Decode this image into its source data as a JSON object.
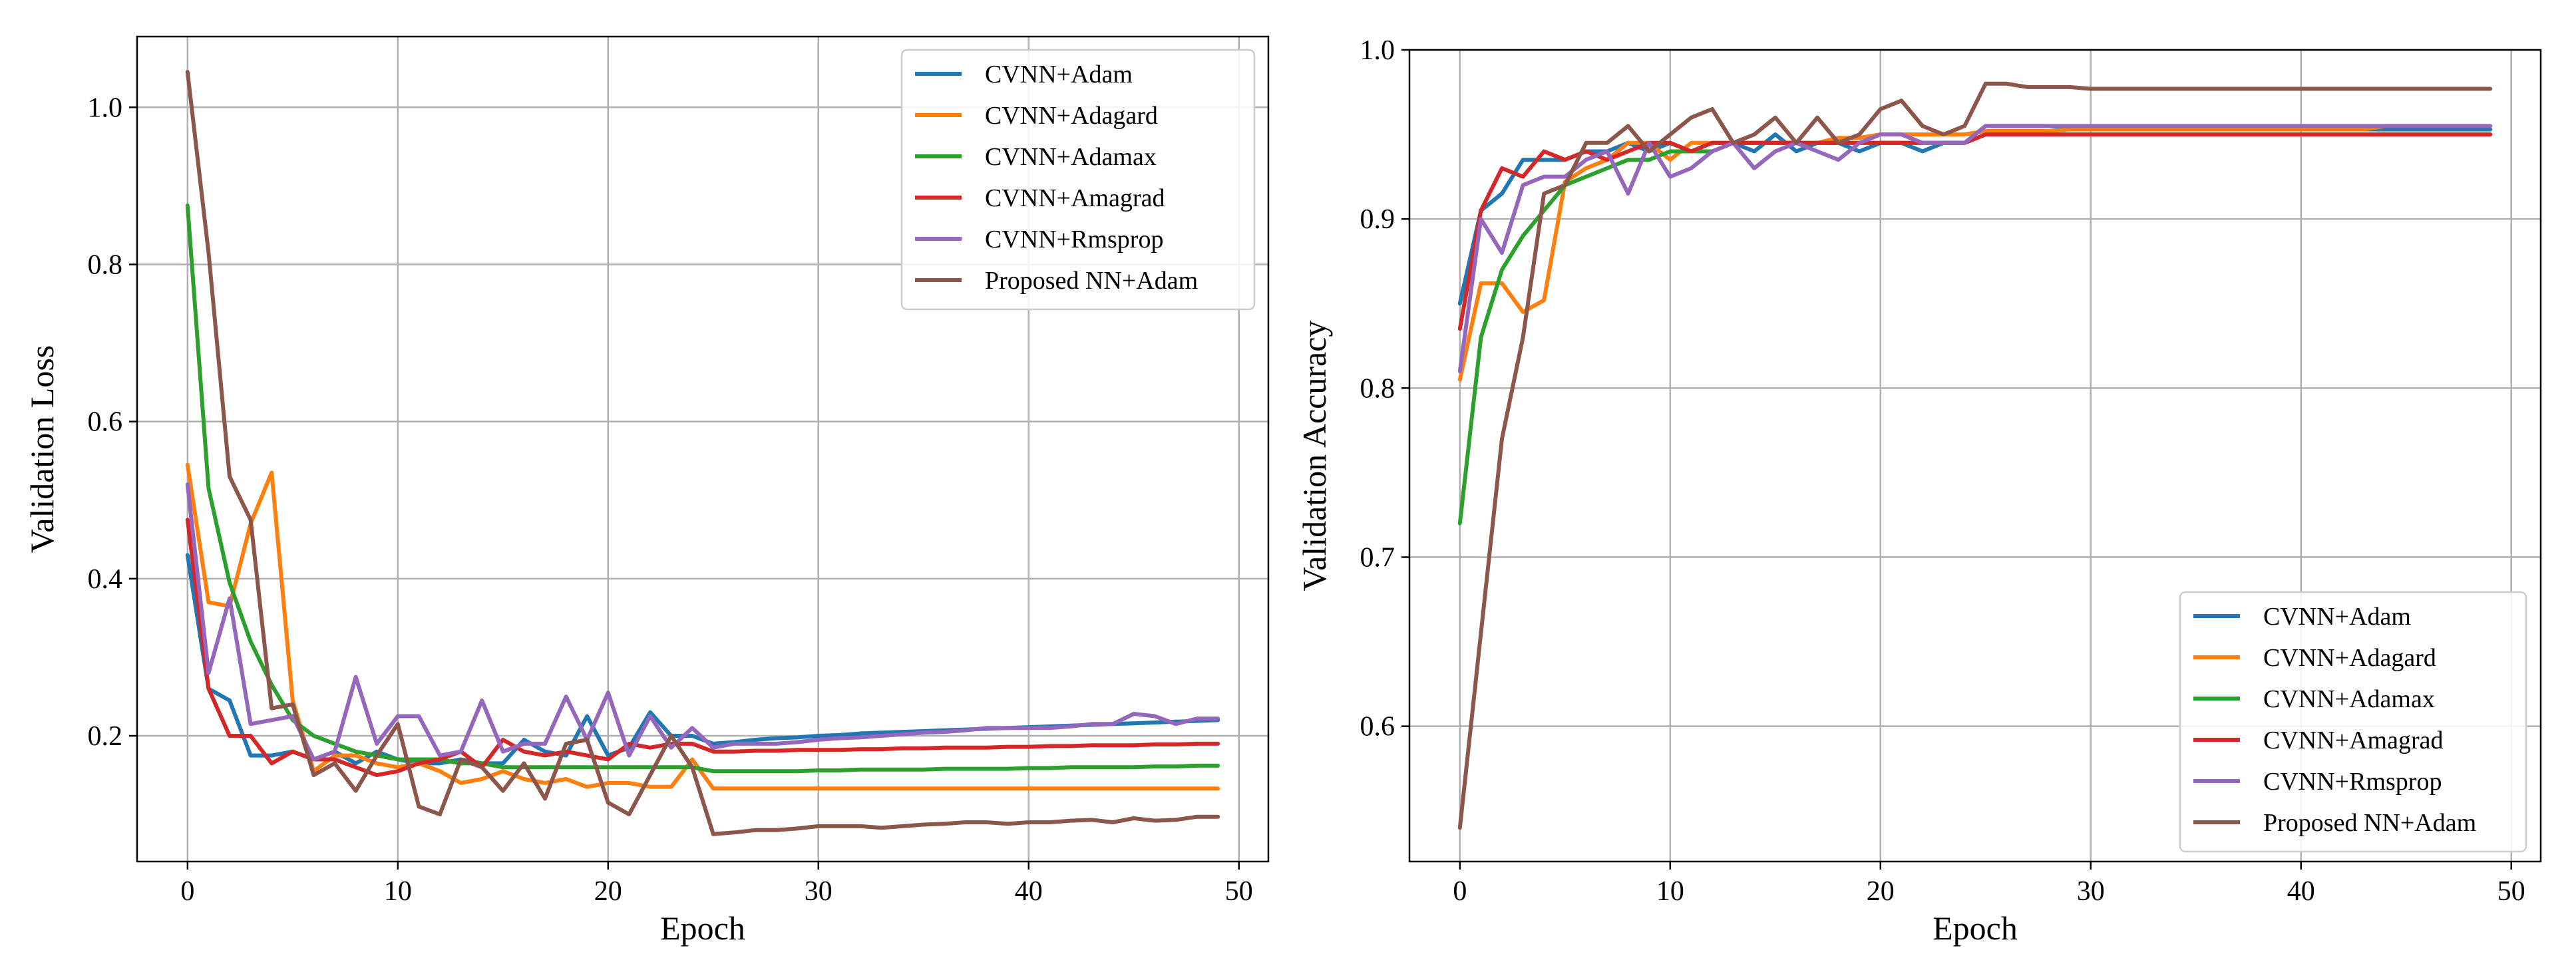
{
  "chart_data": [
    {
      "type": "line",
      "title": "",
      "xlabel": "Epoch",
      "ylabel": "Validation Loss",
      "xlim": [
        -2.4,
        51.4
      ],
      "ylim": [
        0.04,
        1.09
      ],
      "xticks": [
        0,
        10,
        20,
        30,
        40,
        50
      ],
      "yticks": [
        0.2,
        0.4,
        0.6,
        0.8,
        1.0
      ],
      "xtick_labels": [
        "0",
        "10",
        "20",
        "30",
        "40",
        "50"
      ],
      "ytick_labels": [
        "0.2",
        "0.4",
        "0.6",
        "0.8",
        "1.0"
      ],
      "grid": true,
      "legend_position": "upper right",
      "x": [
        0,
        1,
        2,
        3,
        4,
        5,
        6,
        7,
        8,
        9,
        10,
        11,
        12,
        13,
        14,
        15,
        16,
        17,
        18,
        19,
        20,
        21,
        22,
        23,
        24,
        25,
        26,
        27,
        28,
        29,
        30,
        31,
        32,
        33,
        34,
        35,
        36,
        37,
        38,
        39,
        40,
        41,
        42,
        43,
        44,
        45,
        46,
        47,
        48,
        49
      ],
      "series": [
        {
          "name": "CVNN+Adam",
          "color": "#1f77b4",
          "values": [
            0.43,
            0.26,
            0.245,
            0.175,
            0.175,
            0.18,
            0.17,
            0.18,
            0.165,
            0.18,
            0.17,
            0.165,
            0.165,
            0.17,
            0.165,
            0.165,
            0.195,
            0.18,
            0.175,
            0.225,
            0.175,
            0.185,
            0.23,
            0.2,
            0.2,
            0.19,
            0.192,
            0.195,
            0.197,
            0.198,
            0.2,
            0.201,
            0.203,
            0.204,
            0.205,
            0.206,
            0.207,
            0.208,
            0.209,
            0.21,
            0.211,
            0.212,
            0.213,
            0.214,
            0.215,
            0.216,
            0.217,
            0.218,
            0.219,
            0.22
          ]
        },
        {
          "name": "CVNN+Adagard",
          "color": "#ff7f0e",
          "values": [
            0.545,
            0.37,
            0.365,
            0.47,
            0.535,
            0.245,
            0.155,
            0.175,
            0.175,
            0.165,
            0.16,
            0.165,
            0.155,
            0.14,
            0.145,
            0.155,
            0.145,
            0.14,
            0.145,
            0.135,
            0.14,
            0.14,
            0.135,
            0.135,
            0.17,
            0.133,
            0.133,
            0.133,
            0.133,
            0.133,
            0.133,
            0.133,
            0.133,
            0.133,
            0.133,
            0.133,
            0.133,
            0.133,
            0.133,
            0.133,
            0.133,
            0.133,
            0.133,
            0.133,
            0.133,
            0.133,
            0.133,
            0.133,
            0.133,
            0.133
          ]
        },
        {
          "name": "CVNN+Adamax",
          "color": "#2ca02c",
          "values": [
            0.875,
            0.515,
            0.395,
            0.32,
            0.265,
            0.22,
            0.2,
            0.19,
            0.18,
            0.175,
            0.17,
            0.17,
            0.17,
            0.165,
            0.165,
            0.16,
            0.16,
            0.16,
            0.16,
            0.16,
            0.16,
            0.16,
            0.16,
            0.16,
            0.16,
            0.155,
            0.155,
            0.155,
            0.155,
            0.155,
            0.156,
            0.156,
            0.157,
            0.157,
            0.157,
            0.157,
            0.158,
            0.158,
            0.158,
            0.158,
            0.159,
            0.159,
            0.16,
            0.16,
            0.16,
            0.16,
            0.161,
            0.161,
            0.162,
            0.162
          ]
        },
        {
          "name": "CVNN+Amagrad",
          "color": "#d62728",
          "values": [
            0.475,
            0.26,
            0.2,
            0.2,
            0.165,
            0.18,
            0.17,
            0.17,
            0.16,
            0.15,
            0.155,
            0.165,
            0.17,
            0.18,
            0.16,
            0.195,
            0.18,
            0.175,
            0.18,
            0.175,
            0.17,
            0.19,
            0.185,
            0.19,
            0.19,
            0.18,
            0.18,
            0.181,
            0.181,
            0.182,
            0.182,
            0.182,
            0.183,
            0.183,
            0.184,
            0.184,
            0.185,
            0.185,
            0.185,
            0.186,
            0.186,
            0.187,
            0.187,
            0.188,
            0.188,
            0.188,
            0.189,
            0.189,
            0.19,
            0.19
          ]
        },
        {
          "name": "CVNN+Rmsprop",
          "color": "#9467bd",
          "values": [
            0.52,
            0.28,
            0.375,
            0.215,
            0.22,
            0.225,
            0.17,
            0.18,
            0.275,
            0.19,
            0.225,
            0.225,
            0.175,
            0.18,
            0.245,
            0.18,
            0.19,
            0.19,
            0.25,
            0.195,
            0.255,
            0.175,
            0.225,
            0.185,
            0.21,
            0.185,
            0.19,
            0.19,
            0.19,
            0.192,
            0.195,
            0.197,
            0.198,
            0.2,
            0.202,
            0.204,
            0.205,
            0.207,
            0.21,
            0.21,
            0.21,
            0.21,
            0.212,
            0.215,
            0.215,
            0.228,
            0.225,
            0.215,
            0.222,
            0.222
          ]
        },
        {
          "name": "Proposed NN+Adam",
          "color": "#8c564b",
          "values": [
            1.045,
            0.815,
            0.53,
            0.475,
            0.235,
            0.24,
            0.15,
            0.165,
            0.13,
            0.175,
            0.215,
            0.11,
            0.1,
            0.17,
            0.16,
            0.13,
            0.165,
            0.12,
            0.19,
            0.195,
            0.115,
            0.1,
            0.15,
            0.2,
            0.16,
            0.075,
            0.077,
            0.08,
            0.08,
            0.082,
            0.085,
            0.085,
            0.085,
            0.083,
            0.085,
            0.087,
            0.088,
            0.09,
            0.09,
            0.088,
            0.09,
            0.09,
            0.092,
            0.093,
            0.09,
            0.095,
            0.092,
            0.093,
            0.097,
            0.097
          ]
        }
      ]
    },
    {
      "type": "line",
      "title": "",
      "xlabel": "Epoch",
      "ylabel": "Validation Accuracy",
      "xlim": [
        -2.4,
        51.4
      ],
      "ylim": [
        0.52,
        1.0
      ],
      "xticks": [
        0,
        10,
        20,
        30,
        40,
        50
      ],
      "yticks": [
        0.6,
        0.7,
        0.8,
        0.9,
        1.0
      ],
      "xtick_labels": [
        "0",
        "10",
        "20",
        "30",
        "40",
        "50"
      ],
      "ytick_labels": [
        "0.6",
        "0.7",
        "0.8",
        "0.9",
        "1.0"
      ],
      "grid": true,
      "legend_position": "lower right",
      "x": [
        0,
        1,
        2,
        3,
        4,
        5,
        6,
        7,
        8,
        9,
        10,
        11,
        12,
        13,
        14,
        15,
        16,
        17,
        18,
        19,
        20,
        21,
        22,
        23,
        24,
        25,
        26,
        27,
        28,
        29,
        30,
        31,
        32,
        33,
        34,
        35,
        36,
        37,
        38,
        39,
        40,
        41,
        42,
        43,
        44,
        45,
        46,
        47,
        48,
        49
      ],
      "series": [
        {
          "name": "CVNN+Adam",
          "color": "#1f77b4",
          "values": [
            0.85,
            0.905,
            0.915,
            0.935,
            0.935,
            0.935,
            0.94,
            0.94,
            0.945,
            0.94,
            0.945,
            0.94,
            0.945,
            0.945,
            0.94,
            0.95,
            0.94,
            0.945,
            0.945,
            0.94,
            0.945,
            0.945,
            0.94,
            0.945,
            0.945,
            0.955,
            0.955,
            0.955,
            0.955,
            0.954,
            0.954,
            0.954,
            0.954,
            0.954,
            0.954,
            0.954,
            0.954,
            0.953,
            0.953,
            0.953,
            0.953,
            0.953,
            0.953,
            0.953,
            0.953,
            0.953,
            0.953,
            0.953,
            0.953,
            0.953
          ]
        },
        {
          "name": "CVNN+Adagard",
          "color": "#ff7f0e",
          "values": [
            0.805,
            0.862,
            0.862,
            0.845,
            0.852,
            0.922,
            0.93,
            0.935,
            0.945,
            0.945,
            0.935,
            0.945,
            0.945,
            0.945,
            0.945,
            0.945,
            0.945,
            0.945,
            0.948,
            0.948,
            0.95,
            0.95,
            0.95,
            0.95,
            0.95,
            0.952,
            0.952,
            0.952,
            0.952,
            0.953,
            0.953,
            0.953,
            0.953,
            0.953,
            0.953,
            0.953,
            0.953,
            0.953,
            0.953,
            0.953,
            0.953,
            0.953,
            0.953,
            0.953,
            0.955,
            0.955,
            0.955,
            0.955,
            0.955,
            0.955
          ]
        },
        {
          "name": "CVNN+Adamax",
          "color": "#2ca02c",
          "values": [
            0.72,
            0.83,
            0.87,
            0.89,
            0.905,
            0.92,
            0.925,
            0.93,
            0.935,
            0.935,
            0.94,
            0.94,
            0.94,
            0.945,
            0.945,
            0.945,
            0.945,
            0.945,
            0.945,
            0.945,
            0.945,
            0.945,
            0.945,
            0.945,
            0.945,
            0.95,
            0.95,
            0.95,
            0.95,
            0.95,
            0.95,
            0.95,
            0.95,
            0.95,
            0.95,
            0.95,
            0.95,
            0.95,
            0.95,
            0.95,
            0.95,
            0.95,
            0.95,
            0.95,
            0.95,
            0.95,
            0.95,
            0.95,
            0.95,
            0.95
          ]
        },
        {
          "name": "CVNN+Amagrad",
          "color": "#d62728",
          "values": [
            0.835,
            0.905,
            0.93,
            0.925,
            0.94,
            0.935,
            0.94,
            0.935,
            0.94,
            0.945,
            0.945,
            0.94,
            0.945,
            0.945,
            0.945,
            0.945,
            0.945,
            0.945,
            0.945,
            0.945,
            0.945,
            0.945,
            0.945,
            0.945,
            0.945,
            0.95,
            0.95,
            0.95,
            0.95,
            0.95,
            0.95,
            0.95,
            0.95,
            0.95,
            0.95,
            0.95,
            0.95,
            0.95,
            0.95,
            0.95,
            0.95,
            0.95,
            0.95,
            0.95,
            0.95,
            0.95,
            0.95,
            0.95,
            0.95,
            0.95
          ]
        },
        {
          "name": "CVNN+Rmsprop",
          "color": "#9467bd",
          "values": [
            0.81,
            0.9,
            0.88,
            0.92,
            0.925,
            0.925,
            0.935,
            0.94,
            0.915,
            0.945,
            0.925,
            0.93,
            0.94,
            0.945,
            0.93,
            0.94,
            0.945,
            0.94,
            0.935,
            0.945,
            0.95,
            0.95,
            0.945,
            0.945,
            0.945,
            0.955,
            0.955,
            0.955,
            0.955,
            0.955,
            0.955,
            0.955,
            0.955,
            0.955,
            0.955,
            0.955,
            0.955,
            0.955,
            0.955,
            0.955,
            0.955,
            0.955,
            0.955,
            0.955,
            0.955,
            0.955,
            0.955,
            0.955,
            0.955,
            0.955
          ]
        },
        {
          "name": "Proposed NN+Adam",
          "color": "#8c564b",
          "values": [
            0.54,
            0.655,
            0.77,
            0.83,
            0.915,
            0.92,
            0.945,
            0.945,
            0.955,
            0.94,
            0.95,
            0.96,
            0.965,
            0.945,
            0.95,
            0.96,
            0.945,
            0.96,
            0.945,
            0.95,
            0.965,
            0.97,
            0.955,
            0.95,
            0.955,
            0.98,
            0.98,
            0.978,
            0.978,
            0.978,
            0.977,
            0.977,
            0.977,
            0.977,
            0.977,
            0.977,
            0.977,
            0.977,
            0.977,
            0.977,
            0.977,
            0.977,
            0.977,
            0.977,
            0.977,
            0.977,
            0.977,
            0.977,
            0.977,
            0.977
          ]
        }
      ]
    }
  ]
}
